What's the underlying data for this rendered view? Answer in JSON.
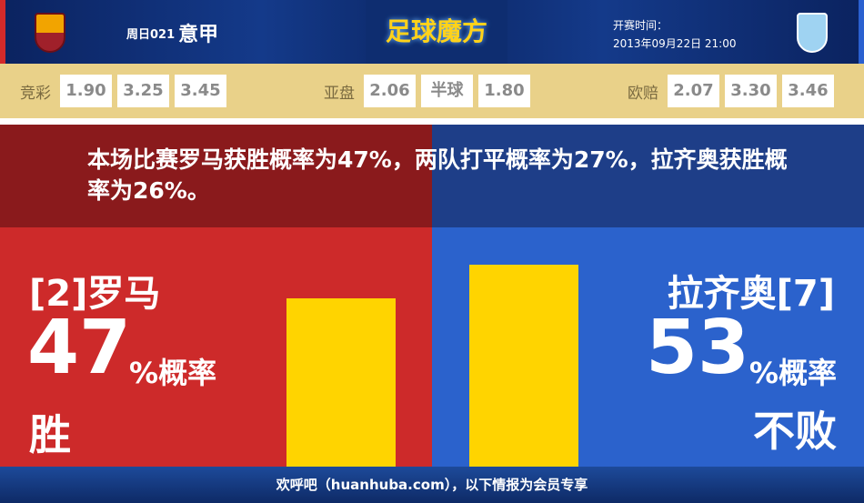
{
  "header": {
    "match_no": "周日021",
    "league": "意甲",
    "brand": "足球魔方",
    "time_label": "开赛时间：",
    "time_value": "2013年09月22日 21:00"
  },
  "odds": {
    "jingcai": {
      "label": "竞彩",
      "values": [
        "1.90",
        "3.25",
        "3.45"
      ]
    },
    "yapan": {
      "label": "亚盘",
      "values": [
        "2.06",
        "半球",
        "1.80"
      ]
    },
    "oupei": {
      "label": "欧赔",
      "values": [
        "2.07",
        "3.30",
        "3.46"
      ]
    }
  },
  "message": "本场比赛罗马获胜概率为47%，两队打平概率为27%，拉齐奥获胜概率为26%。",
  "home": {
    "name": "[2]罗马",
    "pct": "47",
    "pct_suffix": "%概率",
    "outcome": "胜",
    "bar_value": 47
  },
  "away": {
    "name": "拉齐奥[7]",
    "pct": "53",
    "pct_suffix": "%概率",
    "outcome": "不败",
    "bar_value": 53
  },
  "colors": {
    "home": "#cd2a2a",
    "away": "#2b62cc",
    "bar": "#ffd400"
  },
  "footer": "欢呼吧（huanhuba.com），以下情报为会员专享"
}
